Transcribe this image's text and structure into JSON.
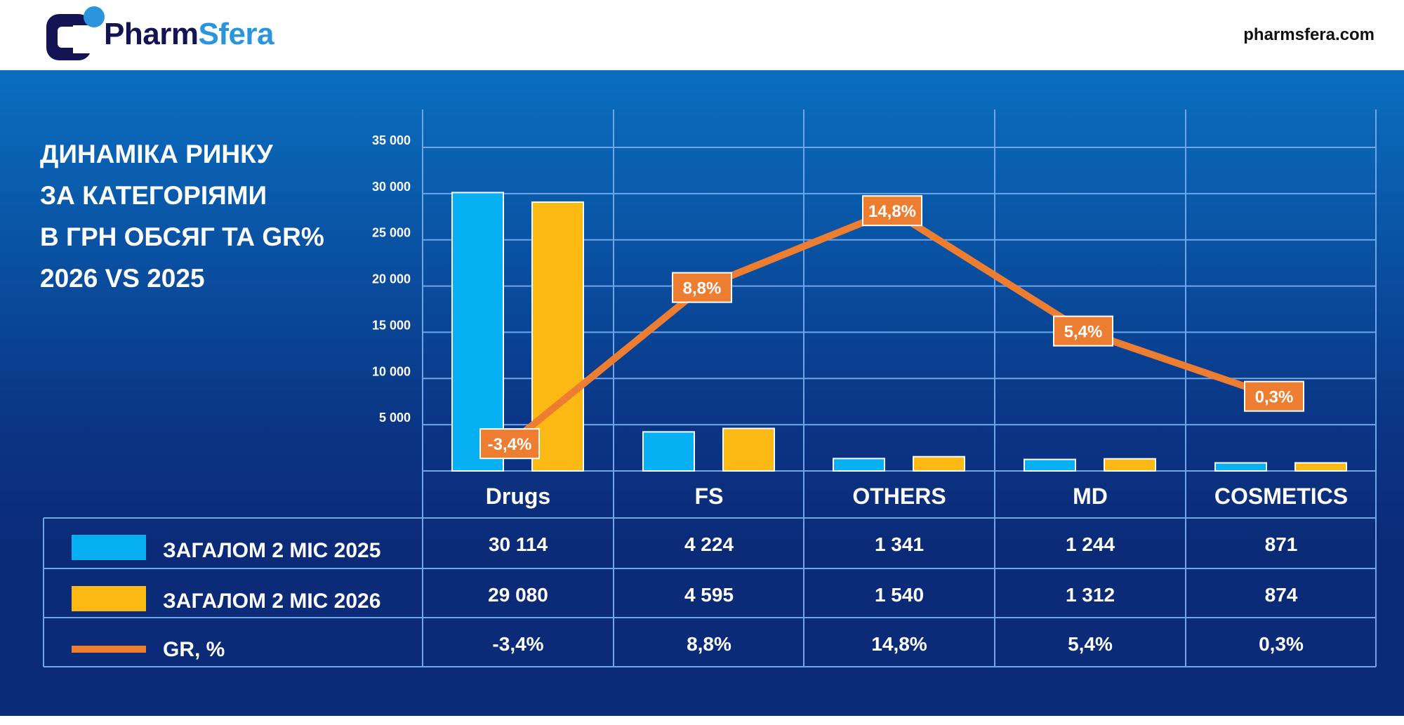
{
  "header": {
    "brand_dark": "Pharm",
    "brand_light": "Sfera",
    "site": "pharmsfera.com"
  },
  "title": "ДИНАМІКА РИНКУ\nЗА КАТЕГОРІЯМИ\nВ ГРН  ОБСЯГ ТА GR%\n2026 VS 2025",
  "colors": {
    "series_2025": "#06b0f2",
    "series_2026": "#fdb913",
    "gr": "#ed7d31"
  },
  "chart_data": {
    "type": "bar",
    "title": "ДИНАМІКА РИНКУ ЗА КАТЕГОРІЯМИ В ГРН ОБСЯГ ТА GR% 2026 VS 2025",
    "categories": [
      "Drugs",
      "FS",
      "OTHERS",
      "MD",
      "COSMETICS"
    ],
    "y_ticks": [
      "5 000",
      "10 000",
      "15 000",
      "20 000",
      "25 000",
      "30 000",
      "35 000"
    ],
    "ylim": [
      0,
      35000
    ],
    "grid": true,
    "legend_placement": "bottom-table",
    "series": [
      {
        "name": "ЗАГАЛОМ 2 МІС 2025",
        "type": "bar",
        "values": [
          30114,
          4224,
          1341,
          1244,
          871
        ],
        "labels": [
          "30 114",
          "4 224",
          "1 341",
          "1 244",
          "871"
        ]
      },
      {
        "name": "ЗАГАЛОМ 2 МІС 2026",
        "type": "bar",
        "values": [
          29080,
          4595,
          1540,
          1312,
          874
        ],
        "labels": [
          "29 080",
          "4 595",
          "1 540",
          "1 312",
          "874"
        ]
      },
      {
        "name": "GR, %",
        "type": "line",
        "values": [
          -3.4,
          8.8,
          14.8,
          5.4,
          0.3
        ],
        "labels": [
          "-3,4%",
          "8,8%",
          "14,8%",
          "5,4%",
          "0,3%"
        ]
      }
    ]
  }
}
